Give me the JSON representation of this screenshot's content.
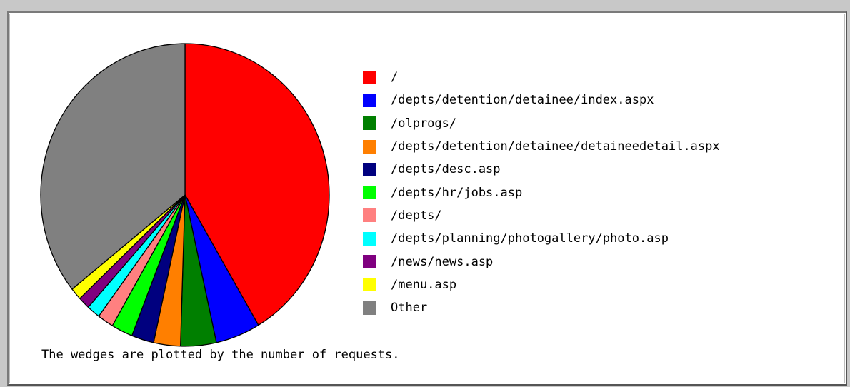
{
  "chart_data": {
    "type": "pie",
    "start": "12 o'clock",
    "direction": "clockwise",
    "slices": [
      {
        "label": "/",
        "value": 41.5,
        "color": "#ff0000"
      },
      {
        "label": "/depts/detention/detainee/index.aspx",
        "value": 5.0,
        "color": "#0000ff"
      },
      {
        "label": "/olprogs/",
        "value": 4.0,
        "color": "#007f00"
      },
      {
        "label": "/depts/detention/detainee/detaineedetail.aspx",
        "value": 3.0,
        "color": "#ff7f00"
      },
      {
        "label": "/depts/desc.asp",
        "value": 2.5,
        "color": "#00007f"
      },
      {
        "label": "/depts/hr/jobs.asp",
        "value": 2.4,
        "color": "#00ff00"
      },
      {
        "label": "/depts/",
        "value": 1.8,
        "color": "#ff8080"
      },
      {
        "label": "/depts/planning/photogallery/photo.asp",
        "value": 1.5,
        "color": "#00ffff"
      },
      {
        "label": "/news/news.asp",
        "value": 1.3,
        "color": "#7f007f"
      },
      {
        "label": "/menu.asp",
        "value": 1.3,
        "color": "#ffff00"
      },
      {
        "label": "Other",
        "value": 35.7,
        "color": "#808080"
      }
    ]
  },
  "caption": "The wedges are plotted by the number of requests."
}
